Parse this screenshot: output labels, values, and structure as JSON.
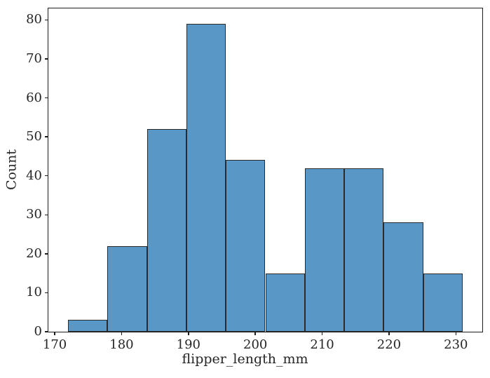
{
  "figure": {
    "background": "#ffffff",
    "frame_color": "#1c1c1c",
    "tick_color": "#1c1c1c",
    "text_color": "#262626"
  },
  "chart_data": {
    "type": "bar",
    "subtype": "histogram",
    "title": "",
    "xlabel": "flipper_length_mm",
    "ylabel": "Count",
    "bin_edges": [
      172,
      177.9,
      183.8,
      189.7,
      195.6,
      201.5,
      207.4,
      213.3,
      219.2,
      225.1,
      231
    ],
    "values": [
      3,
      22,
      52,
      79,
      44,
      15,
      42,
      42,
      28,
      15
    ],
    "xticks": [
      170,
      180,
      190,
      200,
      210,
      220,
      230
    ],
    "yticks": [
      0,
      10,
      20,
      30,
      40,
      50,
      60,
      70,
      80
    ],
    "xlim": [
      169.05,
      233.95
    ],
    "ylim": [
      0,
      82.95
    ],
    "bar_color": "#5897c6",
    "bar_edge_color": "#2b2b2b",
    "grid": false,
    "legend_position": "none"
  }
}
